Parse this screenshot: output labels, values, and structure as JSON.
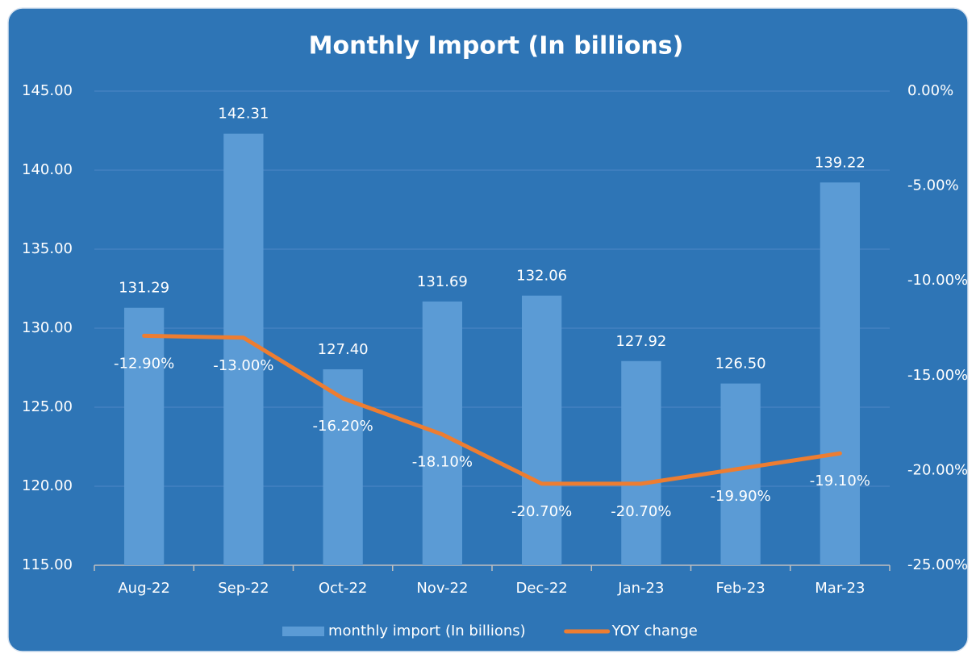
{
  "chart_data": {
    "type": "bar",
    "title": "Monthly Import (In billions)",
    "categories": [
      "Aug-22",
      "Sep-22",
      "Oct-22",
      "Nov-22",
      "Dec-22",
      "Jan-23",
      "Feb-23",
      "Mar-23"
    ],
    "series": [
      {
        "name": "monthly import (In billions)",
        "type": "bar",
        "color": "#5b9bd5",
        "values": [
          131.29,
          142.31,
          127.4,
          131.69,
          132.06,
          127.92,
          126.5,
          139.22
        ],
        "value_labels": [
          "131.29",
          "142.31",
          "127.40",
          "131.69",
          "132.06",
          "127.92",
          "126.50",
          "139.22"
        ]
      },
      {
        "name": "YOY change",
        "type": "line",
        "axis": "y2",
        "color": "#ed7d31",
        "values": [
          -12.9,
          -13.0,
          -16.2,
          -18.1,
          -20.7,
          -20.7,
          -19.9,
          -19.1
        ],
        "value_labels": [
          "-12.90%",
          "-13.00%",
          "-16.20%",
          "-18.10%",
          "-20.70%",
          "-20.70%",
          "-19.90%",
          "-19.10%"
        ]
      }
    ],
    "ylim": [
      115,
      145
    ],
    "yticks": [
      {
        "value": 115,
        "label": "115.00"
      },
      {
        "value": 120,
        "label": "120.00"
      },
      {
        "value": 125,
        "label": "125.00"
      },
      {
        "value": 130,
        "label": "130.00"
      },
      {
        "value": 135,
        "label": "135.00"
      },
      {
        "value": 140,
        "label": "140.00"
      },
      {
        "value": 145,
        "label": "145.00"
      }
    ],
    "y2lim": [
      -25,
      0
    ],
    "y2ticks": [
      {
        "value": -25,
        "label": "-25.00%"
      },
      {
        "value": -20,
        "label": "-20.00%"
      },
      {
        "value": -15,
        "label": "-15.00%"
      },
      {
        "value": -10,
        "label": "-10.00%"
      },
      {
        "value": -5,
        "label": "-5.00%"
      },
      {
        "value": 0,
        "label": "0.00%"
      }
    ],
    "grid": true,
    "legend": "bottom"
  }
}
